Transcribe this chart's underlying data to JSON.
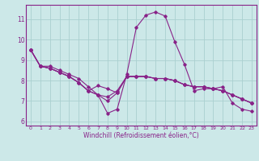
{
  "background_color": "#cce8e8",
  "grid_color": "#aad0d0",
  "line_color": "#882288",
  "x_label": "Windchill (Refroidissement éolien,°C)",
  "ylim": [
    5.8,
    11.7
  ],
  "xlim": [
    -0.5,
    23.5
  ],
  "yticks": [
    6,
    7,
    8,
    9,
    10,
    11
  ],
  "x_ticks": [
    0,
    1,
    2,
    3,
    4,
    5,
    6,
    7,
    8,
    9,
    10,
    11,
    12,
    13,
    14,
    15,
    16,
    17,
    18,
    19,
    20,
    21,
    22,
    23
  ],
  "series": [
    [
      9.5,
      8.7,
      8.7,
      8.5,
      8.3,
      8.1,
      7.7,
      7.3,
      6.4,
      6.6,
      8.3,
      10.6,
      11.2,
      11.35,
      11.15,
      9.9,
      8.8,
      7.5,
      7.6,
      7.6,
      7.7,
      6.9,
      6.6,
      6.5
    ],
    [
      9.5,
      8.7,
      8.6,
      8.4,
      8.2,
      7.9,
      7.5,
      7.75,
      7.6,
      7.4,
      8.2,
      8.2,
      8.2,
      8.1,
      8.1,
      8.0,
      7.8,
      7.7,
      7.7,
      7.6,
      7.5,
      7.3,
      7.1,
      6.9
    ],
    [
      9.5,
      8.7,
      8.6,
      8.4,
      8.2,
      7.9,
      7.5,
      7.3,
      7.0,
      7.4,
      8.2,
      8.2,
      8.2,
      8.1,
      8.1,
      8.0,
      7.8,
      7.7,
      7.7,
      7.6,
      7.5,
      7.3,
      7.1,
      6.9
    ],
    [
      9.5,
      8.7,
      8.6,
      8.4,
      8.2,
      7.9,
      7.5,
      7.3,
      7.2,
      7.5,
      8.2,
      8.2,
      8.2,
      8.1,
      8.1,
      8.0,
      7.8,
      7.7,
      7.7,
      7.6,
      7.5,
      7.3,
      7.1,
      6.9
    ]
  ]
}
